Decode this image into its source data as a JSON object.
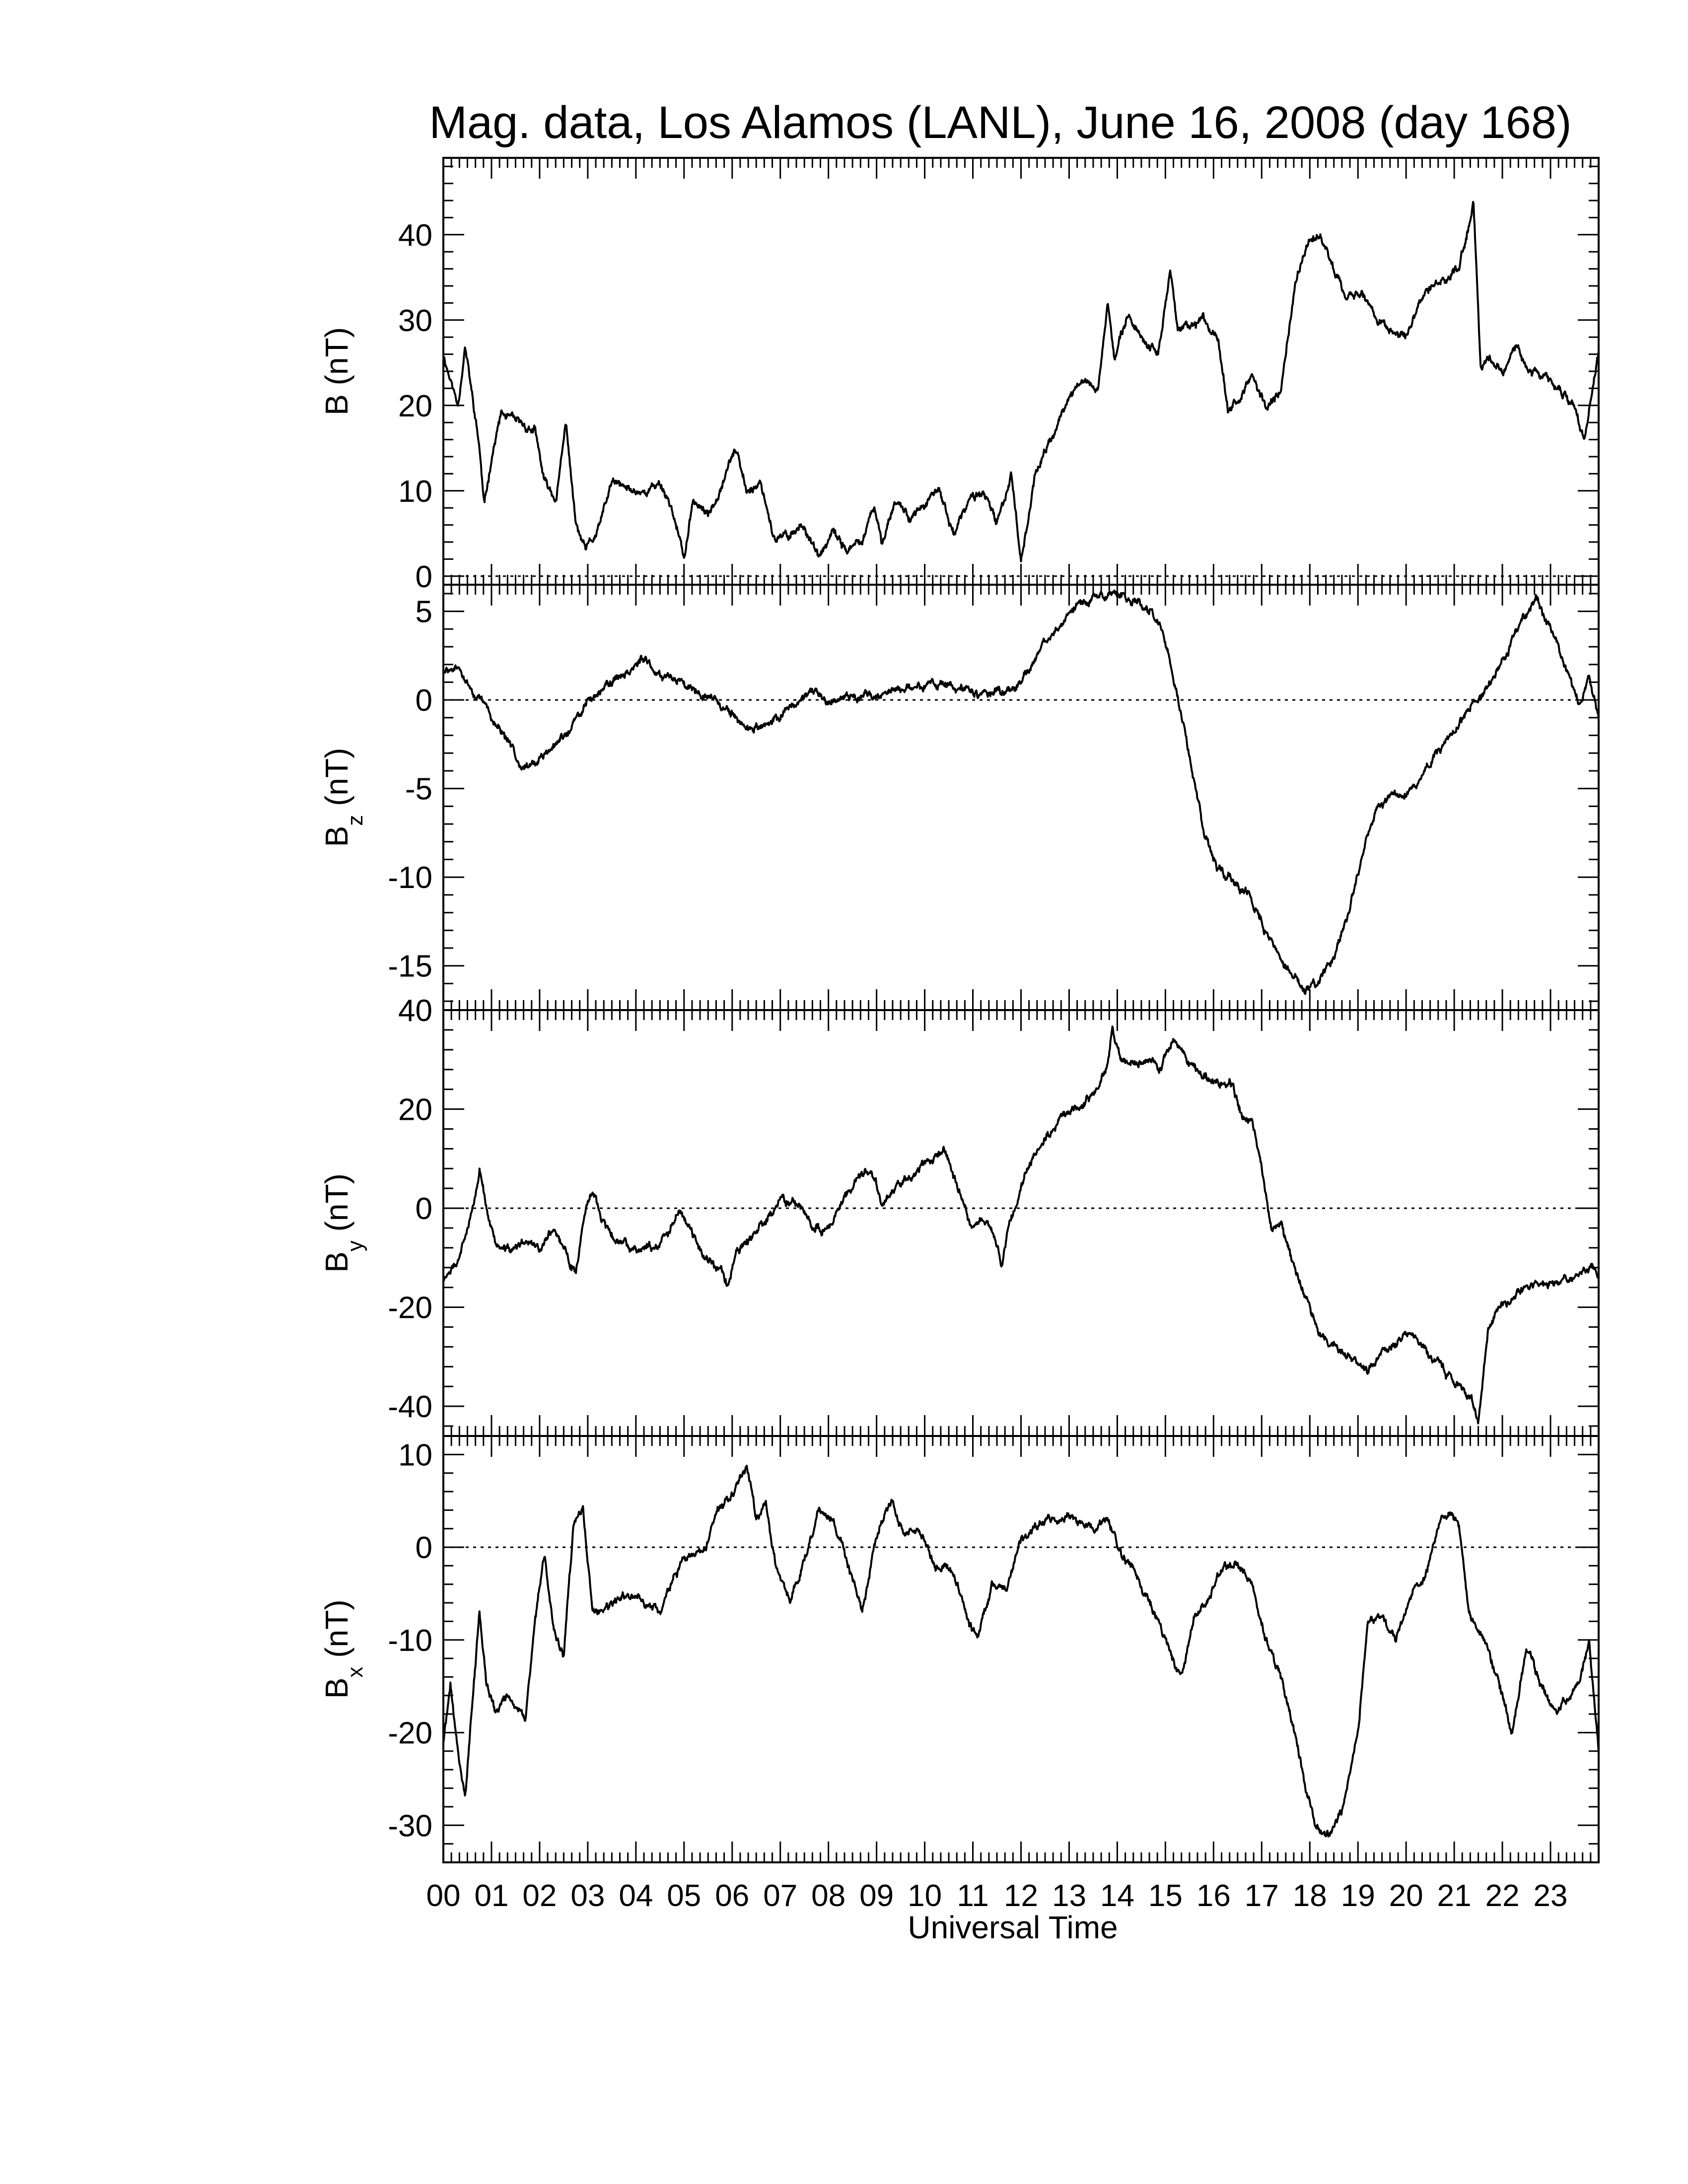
{
  "title": "Mag. data, Los Alamos (LANL), June 16, 2008 (day 168)",
  "xlabel": "Universal Time",
  "x_tick_labels": [
    "00",
    "01",
    "02",
    "03",
    "04",
    "05",
    "06",
    "07",
    "08",
    "09",
    "10",
    "11",
    "12",
    "13",
    "14",
    "15",
    "16",
    "17",
    "18",
    "19",
    "20",
    "21",
    "22",
    "23"
  ],
  "colors": {
    "line": "#000000",
    "zero_line": "#000000",
    "background": "#ffffff"
  },
  "chart_data": [
    {
      "type": "line",
      "ylabel": "B (nT)",
      "ylabel_main": "B",
      "ylabel_sub": "",
      "ylim": [
        -1,
        49
      ],
      "yticks": [
        0,
        10,
        20,
        30,
        40
      ],
      "ytick_labels": [
        "0",
        "10",
        "20",
        "30",
        "40"
      ],
      "xlim": [
        0,
        24
      ],
      "zero_line": true,
      "x": [
        0,
        0.3,
        0.45,
        0.6,
        0.75,
        0.85,
        1.0,
        1.2,
        1.5,
        1.9,
        2.1,
        2.35,
        2.55,
        2.75,
        2.95,
        3.2,
        3.5,
        3.9,
        4.25,
        4.5,
        4.75,
        5.0,
        5.2,
        5.5,
        5.85,
        6.05,
        6.3,
        6.6,
        6.9,
        7.2,
        7.5,
        7.8,
        8.1,
        8.4,
        8.7,
        8.95,
        9.1,
        9.4,
        9.7,
        9.95,
        10.3,
        10.6,
        10.95,
        11.2,
        11.5,
        11.8,
        12.0,
        12.3,
        12.7,
        13.0,
        13.3,
        13.6,
        13.8,
        13.95,
        14.2,
        14.5,
        14.85,
        15.1,
        15.25,
        15.5,
        15.8,
        16.1,
        16.3,
        16.55,
        16.8,
        17.1,
        17.4,
        17.7,
        18.0,
        18.3,
        18.5,
        18.8,
        19.1,
        19.4,
        19.6,
        20.0,
        20.4,
        20.8,
        21.1,
        21.25,
        21.4,
        21.55,
        21.7,
        22.0,
        22.3,
        22.6,
        22.9,
        23.2,
        23.5,
        23.7,
        23.85,
        24.0
      ],
      "values": [
        26,
        20,
        27,
        21,
        15,
        8,
        14,
        19,
        18,
        17,
        11,
        9,
        18,
        6,
        3,
        5,
        11,
        10,
        10,
        11,
        8,
        2,
        9,
        7,
        12,
        15,
        10,
        11,
        4,
        5,
        6,
        2,
        5,
        3,
        4,
        8,
        4,
        9,
        7,
        8,
        10,
        5,
        9,
        10,
        6,
        12,
        2,
        12,
        17,
        21,
        23,
        22,
        32,
        25,
        31,
        28,
        26,
        36,
        29,
        29,
        30,
        28,
        20,
        21,
        23,
        20,
        22,
        34,
        40,
        39,
        36,
        33,
        33,
        30,
        29,
        28,
        33,
        35,
        36,
        40,
        44,
        24,
        26,
        24,
        27,
        24,
        23,
        22,
        20,
        16,
        21,
        26
      ]
    },
    {
      "type": "line",
      "ylabel": "Bz (nT)",
      "ylabel_main": "B",
      "ylabel_sub": "z",
      "ylim": [
        -17.5,
        6.5
      ],
      "yticks": [
        -15,
        -10,
        -5,
        0,
        5
      ],
      "ytick_labels": [
        "-15",
        "-10",
        "-5",
        "0",
        "5"
      ],
      "xlim": [
        0,
        24
      ],
      "zero_line": true,
      "x": [
        0,
        0.3,
        0.6,
        0.9,
        1.2,
        1.5,
        1.8,
        2.1,
        2.4,
        2.7,
        3.0,
        3.3,
        3.6,
        3.9,
        4.1,
        4.4,
        4.7,
        5.0,
        5.3,
        5.6,
        5.9,
        6.2,
        6.5,
        6.8,
        7.1,
        7.4,
        7.7,
        8.0,
        8.3,
        8.6,
        8.9,
        9.2,
        9.5,
        9.8,
        10.1,
        10.4,
        10.7,
        11.0,
        11.3,
        11.6,
        11.9,
        12.2,
        12.5,
        12.8,
        13.1,
        13.4,
        13.7,
        14.0,
        14.3,
        14.6,
        14.9,
        15.2,
        15.5,
        15.8,
        16.1,
        16.4,
        16.7,
        17.0,
        17.3,
        17.6,
        17.9,
        18.2,
        18.5,
        18.8,
        19.1,
        19.4,
        19.7,
        20.0,
        20.3,
        20.6,
        20.9,
        21.2,
        21.5,
        21.8,
        22.1,
        22.4,
        22.7,
        23.0,
        23.3,
        23.6,
        23.8,
        24.0
      ],
      "values": [
        1.5,
        1.8,
        0.5,
        -0.5,
        -1.8,
        -3.2,
        -3.8,
        -3.2,
        -2.4,
        -1.4,
        -0.1,
        0.7,
        1.2,
        1.8,
        2.3,
        1.6,
        1.4,
        1.0,
        0.6,
        0.2,
        -0.6,
        -1.4,
        -1.6,
        -1.4,
        -0.6,
        0.0,
        0.3,
        0.0,
        0.2,
        0.3,
        0.2,
        0.4,
        0.6,
        0.8,
        0.9,
        0.8,
        0.6,
        0.4,
        0.3,
        0.4,
        0.7,
        1.8,
        3.2,
        4.4,
        5.2,
        5.6,
        5.8,
        6.0,
        5.7,
        5.3,
        4.2,
        1.0,
        -3.0,
        -7.5,
        -9.5,
        -10.0,
        -10.8,
        -12.5,
        -14.2,
        -15.2,
        -16.5,
        -15.8,
        -14.5,
        -12.0,
        -8.5,
        -6.0,
        -5.5,
        -5.4,
        -4.5,
        -3.0,
        -2.0,
        -1.0,
        0.2,
        1.3,
        2.8,
        4.5,
        5.7,
        4.0,
        2.0,
        -0.5,
        1.3,
        -0.8
      ]
    },
    {
      "type": "line",
      "ylabel": "By (nT)",
      "ylabel_main": "B",
      "ylabel_sub": "y",
      "ylim": [
        -46,
        40
      ],
      "yticks": [
        -40,
        -20,
        0,
        20,
        40
      ],
      "ytick_labels": [
        "-40",
        "-20",
        "0",
        "20",
        "40"
      ],
      "xlim": [
        0,
        24
      ],
      "zero_line": true,
      "x": [
        0,
        0.25,
        0.5,
        0.75,
        0.9,
        1.1,
        1.4,
        1.7,
        2.0,
        2.3,
        2.6,
        2.75,
        2.9,
        3.1,
        3.4,
        3.7,
        4.0,
        4.3,
        4.6,
        4.9,
        5.1,
        5.4,
        5.7,
        5.9,
        6.1,
        6.4,
        6.7,
        7.0,
        7.3,
        7.6,
        8.0,
        8.3,
        8.6,
        8.9,
        9.1,
        9.3,
        9.6,
        9.9,
        10.2,
        10.4,
        10.7,
        10.95,
        11.2,
        11.4,
        11.6,
        11.8,
        12.1,
        12.5,
        12.9,
        13.2,
        13.5,
        13.8,
        13.9,
        14.1,
        14.5,
        14.9,
        15.2,
        15.5,
        15.8,
        16.1,
        16.4,
        16.6,
        16.8,
        17.0,
        17.2,
        17.4,
        17.6,
        17.9,
        18.2,
        18.5,
        18.9,
        19.2,
        19.5,
        19.8,
        20.1,
        20.4,
        20.8,
        21.1,
        21.35,
        21.5,
        21.7,
        22.0,
        22.4,
        22.8,
        23.2,
        23.6,
        23.85,
        24.0
      ],
      "values": [
        -14,
        -12,
        -5,
        8,
        0,
        -8,
        -9,
        -7,
        -8,
        -4,
        -10,
        -13,
        -3,
        3,
        -4,
        -7,
        -8,
        -8,
        -6,
        -1,
        -3,
        -9,
        -12,
        -15,
        -9,
        -6,
        -3,
        2,
        1,
        -3,
        -4,
        2,
        6,
        8,
        1,
        3,
        6,
        8,
        10,
        12,
        4,
        -3,
        -3,
        -5,
        -11,
        -2,
        7,
        14,
        18,
        21,
        23,
        28,
        37,
        30,
        30,
        29,
        34,
        29,
        27,
        25,
        25,
        18,
        18,
        8,
        -4,
        -3,
        -10,
        -18,
        -25,
        -27,
        -30,
        -33,
        -29,
        -27,
        -26,
        -29,
        -33,
        -36,
        -38,
        -44,
        -25,
        -19,
        -17,
        -15,
        -15,
        -14,
        -12,
        -13
      ]
    },
    {
      "type": "line",
      "ylabel": "Bx (nT)",
      "ylabel_main": "B",
      "ylabel_sub": "x",
      "ylim": [
        -34,
        12
      ],
      "yticks": [
        -30,
        -20,
        -10,
        0,
        10
      ],
      "ytick_labels": [
        "-30",
        "-20",
        "-10",
        "0",
        "10"
      ],
      "xlim": [
        0,
        24
      ],
      "zero_line": true,
      "x": [
        0,
        0.15,
        0.3,
        0.45,
        0.6,
        0.75,
        0.9,
        1.1,
        1.3,
        1.5,
        1.7,
        1.9,
        2.1,
        2.3,
        2.5,
        2.7,
        2.9,
        3.1,
        3.3,
        3.6,
        3.9,
        4.2,
        4.5,
        4.8,
        5.1,
        5.4,
        5.7,
        6.0,
        6.3,
        6.5,
        6.7,
        6.9,
        7.2,
        7.5,
        7.8,
        8.1,
        8.4,
        8.7,
        9.0,
        9.3,
        9.6,
        9.9,
        10.2,
        10.5,
        10.8,
        11.1,
        11.4,
        11.7,
        12.0,
        12.3,
        12.6,
        12.9,
        13.2,
        13.5,
        13.8,
        14.1,
        14.4,
        14.7,
        15.0,
        15.3,
        15.6,
        15.9,
        16.2,
        16.5,
        16.8,
        17.1,
        17.4,
        17.7,
        17.9,
        18.1,
        18.4,
        18.7,
        19.0,
        19.2,
        19.5,
        19.8,
        20.1,
        20.4,
        20.7,
        20.9,
        21.1,
        21.3,
        21.6,
        21.9,
        22.2,
        22.5,
        22.8,
        23.1,
        23.4,
        23.6,
        23.8,
        24.0
      ],
      "values": [
        -21,
        -15,
        -22,
        -27,
        -17,
        -7,
        -15,
        -18,
        -16,
        -17,
        -19,
        -8,
        -1,
        -9,
        -12,
        2,
        4,
        -7,
        -7,
        -6,
        -5,
        -6,
        -7,
        -3,
        -1,
        -1,
        4,
        6,
        9,
        3,
        5,
        -2,
        -6,
        -1,
        4,
        3,
        -2,
        -7,
        1,
        5,
        1,
        2,
        -2,
        -2,
        -6,
        -10,
        -4,
        -5,
        1,
        2,
        3,
        3,
        3,
        2,
        3,
        -1,
        -3,
        -6,
        -10,
        -14,
        -8,
        -5,
        -2,
        -2,
        -4,
        -10,
        -14,
        -20,
        -26,
        -30,
        -31,
        -28,
        -20,
        -8,
        -7,
        -10,
        -5,
        -3,
        3,
        4,
        2,
        -7,
        -10,
        -14,
        -20,
        -11,
        -15,
        -18,
        -16,
        -15,
        -10,
        -22
      ]
    }
  ]
}
